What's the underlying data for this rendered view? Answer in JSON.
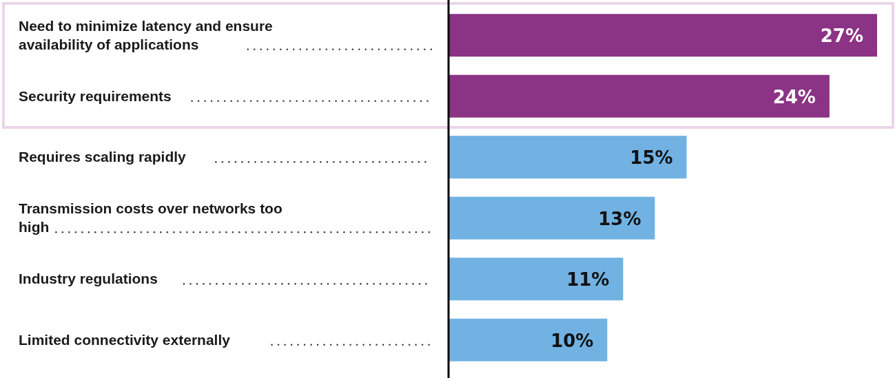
{
  "chart_data": {
    "type": "bar",
    "orientation": "horizontal",
    "relative": false,
    "categories": [
      "Need to minimize latency and ensure availability of applications",
      "Security requirements",
      "Requires scaling rapidly",
      "Transmission costs over networks too high",
      "Industry regulations",
      "Limited connectivity externally"
    ],
    "values": [
      27,
      24,
      15,
      13,
      11,
      10
    ],
    "colors": [
      "#8b3384",
      "#8b3384",
      "#71b2e3",
      "#71b2e3",
      "#71b2e3",
      "#71b2e3"
    ],
    "value_labels": [
      "27%",
      "24%",
      "15%",
      "13%",
      "11%",
      "10%"
    ]
  }
}
